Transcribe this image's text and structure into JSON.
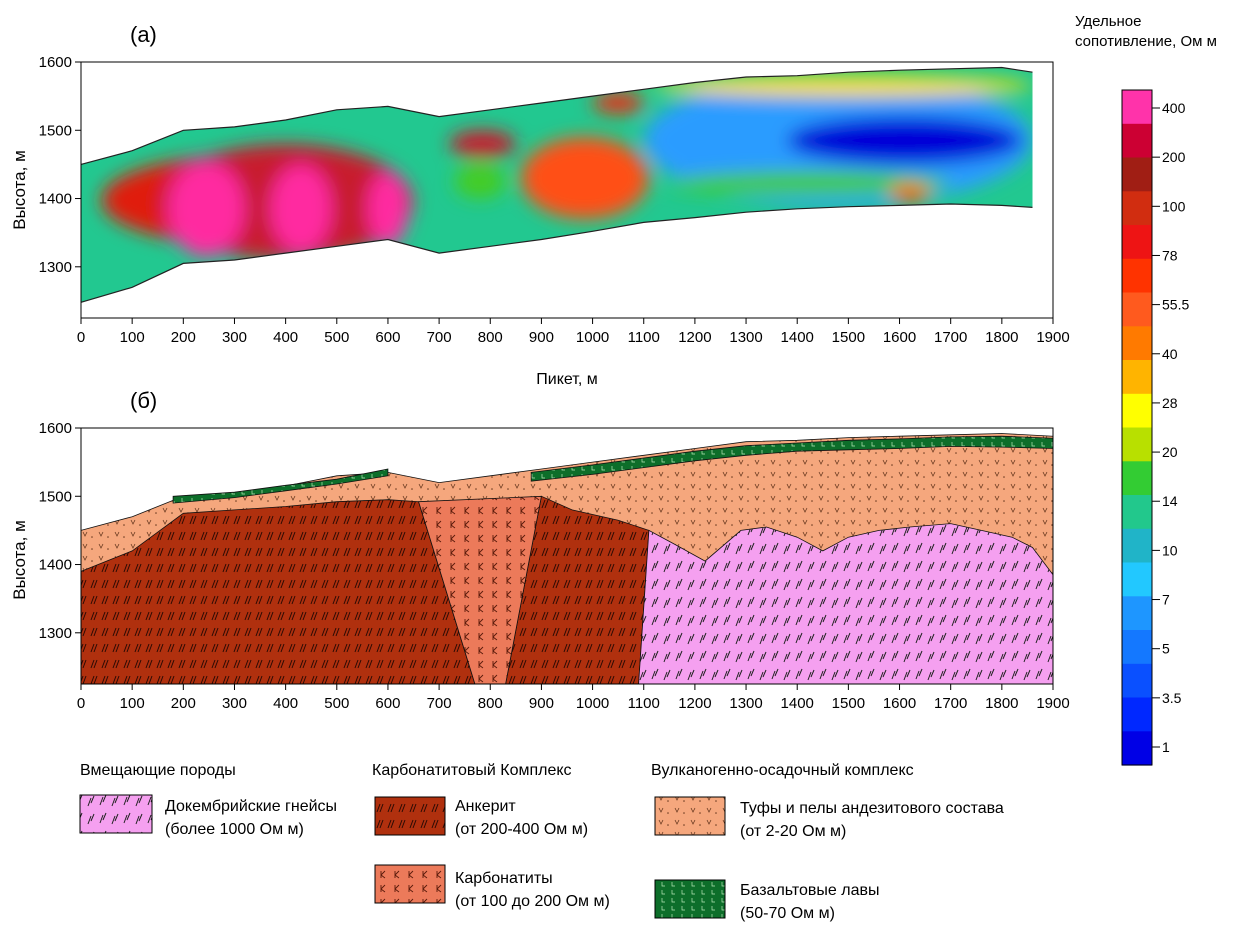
{
  "chart_data": [
    {
      "type": "heatmap",
      "panel_label": "(a)",
      "ylabel": "Высота, м",
      "xlabel": "Пикет, м",
      "xlim": [
        0,
        1900
      ],
      "ylim": [
        1225,
        1600
      ],
      "x_ticks": [
        0,
        100,
        200,
        300,
        400,
        500,
        600,
        700,
        800,
        900,
        1000,
        1100,
        1200,
        1300,
        1400,
        1500,
        1600,
        1700,
        1800,
        1900
      ],
      "y_ticks": [
        1300,
        1400,
        1500,
        1600
      ],
      "top_surface": [
        [
          0,
          1450
        ],
        [
          100,
          1470
        ],
        [
          200,
          1500
        ],
        [
          300,
          1505
        ],
        [
          400,
          1515
        ],
        [
          500,
          1530
        ],
        [
          600,
          1535
        ],
        [
          700,
          1520
        ],
        [
          800,
          1530
        ],
        [
          900,
          1540
        ],
        [
          1000,
          1550
        ],
        [
          1100,
          1560
        ],
        [
          1200,
          1570
        ],
        [
          1300,
          1578
        ],
        [
          1400,
          1580
        ],
        [
          1500,
          1585
        ],
        [
          1600,
          1588
        ],
        [
          1700,
          1590
        ],
        [
          1800,
          1592
        ],
        [
          1860,
          1585
        ]
      ],
      "bottom_surface": [
        [
          0,
          1248
        ],
        [
          100,
          1270
        ],
        [
          200,
          1305
        ],
        [
          300,
          1310
        ],
        [
          400,
          1320
        ],
        [
          500,
          1330
        ],
        [
          600,
          1340
        ],
        [
          700,
          1320
        ],
        [
          800,
          1330
        ],
        [
          900,
          1340
        ],
        [
          1000,
          1352
        ],
        [
          1100,
          1365
        ],
        [
          1200,
          1372
        ],
        [
          1300,
          1380
        ],
        [
          1400,
          1385
        ],
        [
          1500,
          1388
        ],
        [
          1600,
          1390
        ],
        [
          1700,
          1392
        ],
        [
          1800,
          1390
        ],
        [
          1860,
          1387
        ]
      ],
      "resistivity_anomalies": [
        {
          "x": [
            40,
            620
          ],
          "y": [
            1330,
            1465
          ],
          "resistivity": 100
        },
        {
          "x": [
            150,
            650
          ],
          "y": [
            1310,
            1480
          ],
          "resistivity": 200
        },
        {
          "x": [
            170,
            320
          ],
          "y": [
            1315,
            1455
          ],
          "resistivity": 400
        },
        {
          "x": [
            370,
            490
          ],
          "y": [
            1320,
            1450
          ],
          "resistivity": 400
        },
        {
          "x": [
            560,
            640
          ],
          "y": [
            1330,
            1440
          ],
          "resistivity": 400
        },
        {
          "x": [
            720,
            850
          ],
          "y": [
            1460,
            1500
          ],
          "resistivity": 200
        },
        {
          "x": [
            730,
            830
          ],
          "y": [
            1400,
            1450
          ],
          "resistivity": 20
        },
        {
          "x": [
            860,
            1110
          ],
          "y": [
            1370,
            1490
          ],
          "resistivity": 55.5
        },
        {
          "x": [
            1000,
            1100
          ],
          "y": [
            1525,
            1555
          ],
          "resistivity": 78
        },
        {
          "x": [
            1100,
            1860
          ],
          "y": [
            1390,
            1580
          ],
          "resistivity": 7
        },
        {
          "x": [
            1380,
            1840
          ],
          "y": [
            1450,
            1520
          ],
          "resistivity": 1
        },
        {
          "x": [
            1150,
            1700
          ],
          "y": [
            1405,
            1440
          ],
          "resistivity": 20
        },
        {
          "x": [
            1580,
            1660
          ],
          "y": [
            1395,
            1420
          ],
          "resistivity": 55.5
        },
        {
          "x": [
            1120,
            1860
          ],
          "y": [
            1550,
            1580
          ],
          "resistivity": 28
        }
      ]
    },
    {
      "type": "area",
      "panel_label": "(б)",
      "ylabel": "Высота, м",
      "xlabel": "",
      "xlim": [
        0,
        1900
      ],
      "ylim": [
        1225,
        1600
      ],
      "x_ticks": [
        0,
        100,
        200,
        300,
        400,
        500,
        600,
        700,
        800,
        900,
        1000,
        1100,
        1200,
        1300,
        1400,
        1500,
        1600,
        1700,
        1800,
        1900
      ],
      "y_ticks": [
        1300,
        1400,
        1500,
        1600
      ],
      "units": [
        {
          "key": "tuff",
          "polygon": [
            [
              0,
              1450
            ],
            [
              100,
              1470
            ],
            [
              200,
              1500
            ],
            [
              300,
              1505
            ],
            [
              400,
              1515
            ],
            [
              500,
              1530
            ],
            [
              600,
              1535
            ],
            [
              700,
              1520
            ],
            [
              800,
              1530
            ],
            [
              900,
              1540
            ],
            [
              1000,
              1550
            ],
            [
              1100,
              1560
            ],
            [
              1200,
              1570
            ],
            [
              1300,
              1580
            ],
            [
              1400,
              1582
            ],
            [
              1500,
              1586
            ],
            [
              1600,
              1588
            ],
            [
              1700,
              1590
            ],
            [
              1800,
              1592
            ],
            [
              1900,
              1588
            ],
            [
              1900,
              1225
            ],
            [
              0,
              1225
            ]
          ]
        },
        {
          "key": "basalt",
          "polygon": [
            [
              180,
              1500
            ],
            [
              300,
              1506
            ],
            [
              400,
              1516
            ],
            [
              500,
              1525
            ],
            [
              600,
              1540
            ],
            [
              600,
              1530
            ],
            [
              500,
              1518
            ],
            [
              400,
              1508
            ],
            [
              300,
              1498
            ],
            [
              180,
              1490
            ]
          ]
        },
        {
          "key": "basalt",
          "polygon": [
            [
              880,
              1535
            ],
            [
              1000,
              1546
            ],
            [
              1100,
              1556
            ],
            [
              1200,
              1566
            ],
            [
              1300,
              1574
            ],
            [
              1400,
              1578
            ],
            [
              1500,
              1582
            ],
            [
              1600,
              1584
            ],
            [
              1700,
              1587
            ],
            [
              1800,
              1588
            ],
            [
              1900,
              1585
            ],
            [
              1900,
              1570
            ],
            [
              1800,
              1572
            ],
            [
              1700,
              1573
            ],
            [
              1600,
              1570
            ],
            [
              1500,
              1568
            ],
            [
              1400,
              1566
            ],
            [
              1300,
              1560
            ],
            [
              1200,
              1552
            ],
            [
              1100,
              1542
            ],
            [
              1000,
              1532
            ],
            [
              880,
              1522
            ]
          ]
        },
        {
          "key": "ankerite",
          "polygon": [
            [
              0,
              1390
            ],
            [
              100,
              1420
            ],
            [
              200,
              1475
            ],
            [
              300,
              1480
            ],
            [
              400,
              1485
            ],
            [
              500,
              1492
            ],
            [
              600,
              1495
            ],
            [
              660,
              1492
            ],
            [
              770,
              1225
            ],
            [
              0,
              1225
            ]
          ]
        },
        {
          "key": "ankerite",
          "polygon": [
            [
              830,
              1225
            ],
            [
              900,
              1500
            ],
            [
              960,
              1480
            ],
            [
              1050,
              1465
            ],
            [
              1110,
              1450
            ],
            [
              1090,
              1225
            ]
          ]
        },
        {
          "key": "carbonatite",
          "polygon": [
            [
              660,
              1492
            ],
            [
              900,
              1500
            ],
            [
              830,
              1225
            ],
            [
              770,
              1225
            ]
          ]
        },
        {
          "key": "gneiss",
          "polygon": [
            [
              1090,
              1225
            ],
            [
              1110,
              1450
            ],
            [
              1160,
              1430
            ],
            [
              1220,
              1405
            ],
            [
              1290,
              1450
            ],
            [
              1340,
              1455
            ],
            [
              1400,
              1440
            ],
            [
              1450,
              1420
            ],
            [
              1500,
              1440
            ],
            [
              1560,
              1450
            ],
            [
              1620,
              1455
            ],
            [
              1700,
              1460
            ],
            [
              1760,
              1450
            ],
            [
              1820,
              1440
            ],
            [
              1860,
              1425
            ],
            [
              1900,
              1385
            ],
            [
              1900,
              1225
            ]
          ]
        }
      ]
    }
  ],
  "colorbar": {
    "title_line1": "Удельное",
    "title_line2": "сопотивление, Ом м",
    "ticks": [
      "400",
      "200",
      "100",
      "78",
      "55.5",
      "40",
      "28",
      "20",
      "14",
      "10",
      "7",
      "5",
      "3.5",
      "1"
    ],
    "colors": [
      "#ff33aa",
      "#cc0033",
      "#a01e14",
      "#d12d10",
      "#ee1414",
      "#ff3300",
      "#ff5a1e",
      "#ff7a00",
      "#ffb400",
      "#ffff00",
      "#b8e000",
      "#33cc33",
      "#22c88c",
      "#20b4c8",
      "#22c8ff",
      "#1e96ff",
      "#1478ff",
      "#0a50ff",
      "#0028ff",
      "#0000e6"
    ]
  },
  "legend": {
    "groups": [
      {
        "title": "Вмещающие породы",
        "items": [
          {
            "key": "gneiss",
            "line1": "Докембрийские гнейсы",
            "line2": "(более 1000 Ом м)"
          }
        ]
      },
      {
        "title": "Карбонатитовый Комплекс",
        "items": [
          {
            "key": "ankerite",
            "line1": "Анкерит",
            "line2": "(от 200-400 Ом м)"
          },
          {
            "key": "carbonatite",
            "line1": "Карбонатиты",
            "line2": "(от 100 до 200 Ом м)"
          }
        ]
      },
      {
        "title": "Вулканогенно-осадочный комплекс",
        "items": [
          {
            "key": "tuff",
            "line1": "Туфы и пелы андезитового состава",
            "line2": "(от 2-20 Ом м)"
          },
          {
            "key": "basalt",
            "line1": "Базальтовые лавы",
            "line2": "(50-70 Ом м)"
          }
        ]
      }
    ]
  },
  "fills": {
    "gneiss": "#f5a0f0",
    "ankerite": "#b0300e",
    "carbonatite": "#ec7a5a",
    "tuff": "#f5a77d",
    "basalt": "#0d6e2a"
  }
}
